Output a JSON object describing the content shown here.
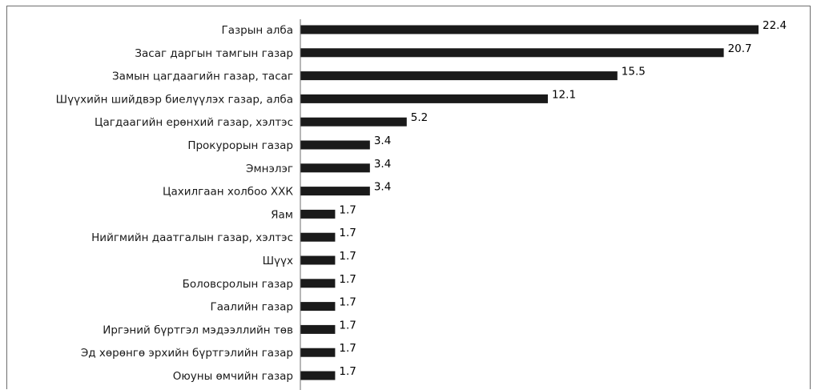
{
  "chart_data": {
    "type": "bar",
    "orientation": "horizontal",
    "categories": [
      "Газрын алба",
      "Засаг даргын тамгын газар",
      "Замын цагдаагийн газар, тасаг",
      "Шүүхийн шийдвэр биелүүлэх газар, алба",
      "Цагдаагийн ерөнхий газар, хэлтэс",
      "Прокурорын газар",
      "Эмнэлэг",
      "Цахилгаан холбоо ХХК",
      "Яам",
      "Нийгмийн даатгалын газар, хэлтэс",
      "Шүүх",
      "Боловсролын газар",
      "Гаалийн газар",
      "Иргэний бүртгэл мэдээллийн төв",
      "Эд хөрөнгө эрхийн бүртгэлийн газар",
      "Оюуны өмчийн газар"
    ],
    "values": [
      22.4,
      20.7,
      15.5,
      12.1,
      5.2,
      3.4,
      3.4,
      3.4,
      1.7,
      1.7,
      1.7,
      1.7,
      1.7,
      1.7,
      1.7,
      1.7
    ],
    "value_labels": [
      "22.4",
      "20.7",
      "15.5",
      "12.1",
      "5.2",
      "3.4",
      "3.4",
      "3.4",
      "1.7",
      "1.7",
      "1.7",
      "1.7",
      "1.7",
      "1.7",
      "1.7",
      "1.7"
    ],
    "bar_color": "#1a1a1a",
    "xlim": [
      0,
      25
    ],
    "grid": false,
    "legend": "none"
  }
}
